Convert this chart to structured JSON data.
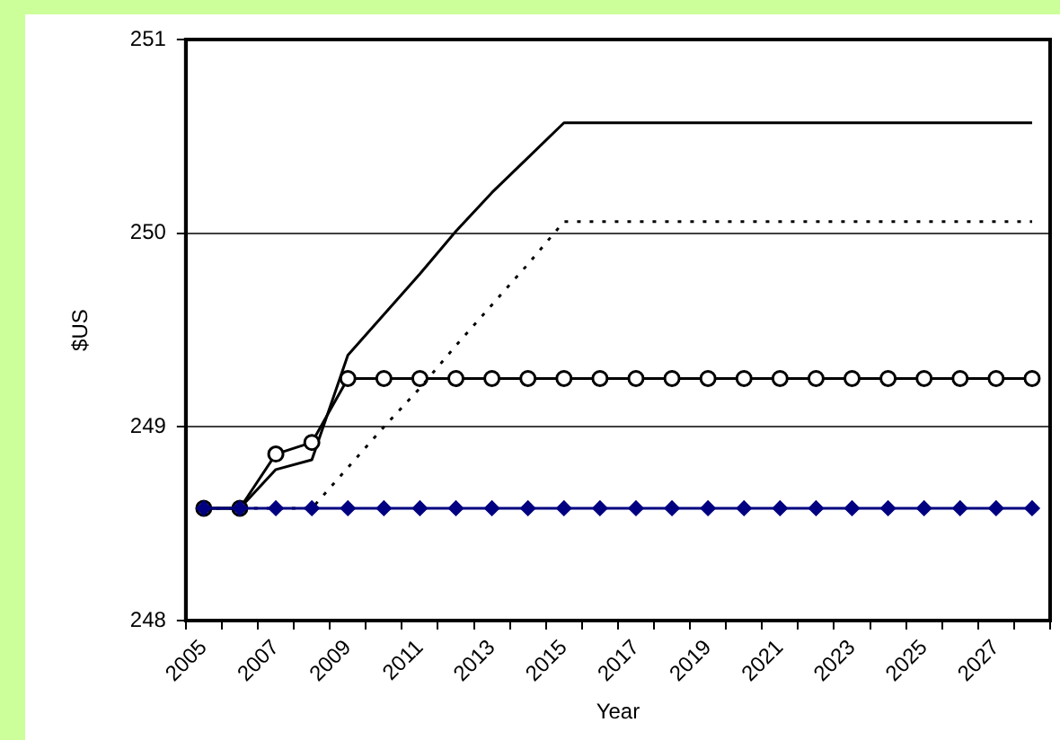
{
  "chart_data": {
    "type": "line",
    "xlabel": "Year",
    "ylabel": "$US",
    "categories": [
      "2005",
      null,
      "2007",
      null,
      "2009",
      null,
      "2011",
      null,
      "2013",
      null,
      "2015",
      null,
      "2017",
      null,
      "2019",
      null,
      "2021",
      null,
      "2023",
      null,
      "2025",
      null,
      "2027",
      null
    ],
    "series": [
      {
        "color": "#000000",
        "marker": "none",
        "line_style": "solid",
        "values": [
          248.58,
          248.58,
          248.78,
          248.83,
          249.37,
          249.58,
          249.79,
          250.01,
          250.21,
          250.39,
          250.57,
          250.57,
          250.57,
          250.57,
          250.57,
          250.57,
          250.57,
          250.57,
          250.57,
          250.57,
          250.57,
          250.57,
          250.57,
          250.57
        ]
      },
      {
        "color": "#000000",
        "marker": "circle",
        "line_style": "solid",
        "values": [
          248.58,
          248.58,
          248.86,
          248.92,
          249.25,
          249.25,
          249.25,
          249.25,
          249.25,
          249.25,
          249.25,
          249.25,
          249.25,
          249.25,
          249.25,
          249.25,
          249.25,
          249.25,
          249.25,
          249.25,
          249.25,
          249.25,
          249.25,
          249.25
        ]
      },
      {
        "color": "#000000",
        "marker": "none",
        "line_style": "dotted",
        "values": [
          248.58,
          248.58,
          248.58,
          248.58,
          248.79,
          249.0,
          249.2,
          249.42,
          249.63,
          249.84,
          250.06,
          250.06,
          250.06,
          250.06,
          250.06,
          250.06,
          250.06,
          250.06,
          250.06,
          250.06,
          250.06,
          250.06,
          250.06,
          250.06
        ]
      },
      {
        "color": "#000080",
        "marker": "diamond",
        "line_style": "solid",
        "values": [
          248.58,
          248.58,
          248.58,
          248.58,
          248.58,
          248.58,
          248.58,
          248.58,
          248.58,
          248.58,
          248.58,
          248.58,
          248.58,
          248.58,
          248.58,
          248.58,
          248.58,
          248.58,
          248.58,
          248.58,
          248.58,
          248.58,
          248.58,
          248.58
        ]
      }
    ],
    "ylim": [
      248,
      251
    ],
    "yticks": [
      248,
      249,
      250,
      251
    ],
    "grid": "y",
    "legend": false
  }
}
